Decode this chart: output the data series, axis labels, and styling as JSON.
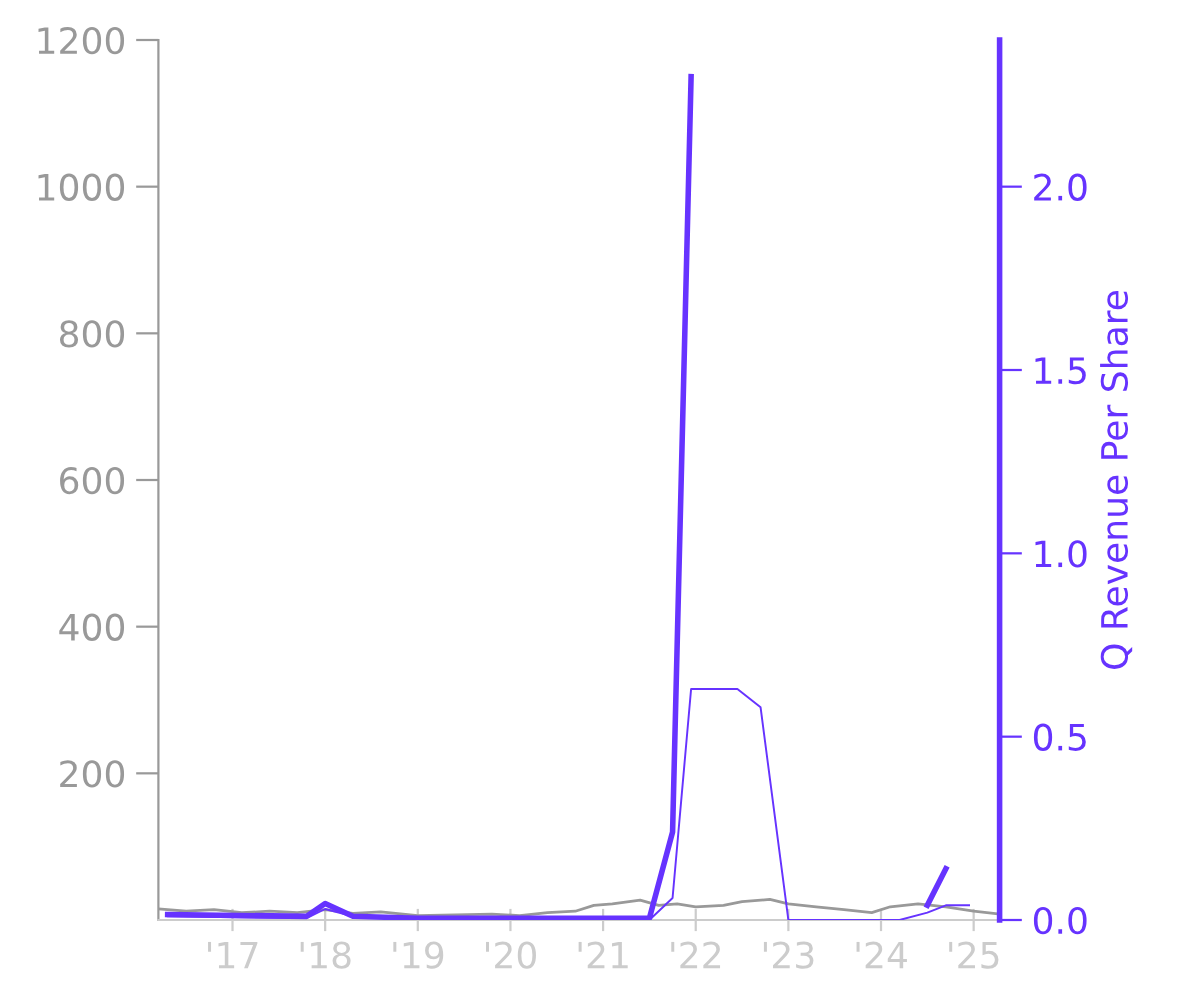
{
  "chart_data": {
    "type": "line",
    "y2label": "Q Revenue Per Share",
    "xlim": [
      2016.2,
      2025.28
    ],
    "xticks": [
      {
        "value": 2017,
        "label": "'17"
      },
      {
        "value": 2018,
        "label": "'18"
      },
      {
        "value": 2019,
        "label": "'19"
      },
      {
        "value": 2020,
        "label": "'20"
      },
      {
        "value": 2021,
        "label": "'21"
      },
      {
        "value": 2022,
        "label": "'22"
      },
      {
        "value": 2023,
        "label": "'23"
      },
      {
        "value": 2024,
        "label": "'24"
      },
      {
        "value": 2025,
        "label": "'25"
      }
    ],
    "ylim": [
      0,
      1200
    ],
    "yticks": [
      200,
      400,
      600,
      800,
      1000,
      1200
    ],
    "y2lim": [
      0,
      2.4
    ],
    "y2ticks": [
      {
        "value": 0,
        "label": "0.0"
      },
      {
        "value": 0.5,
        "label": "0.5"
      },
      {
        "value": 1.0,
        "label": "1.0"
      },
      {
        "value": 1.5,
        "label": "1.5"
      },
      {
        "value": 2.0,
        "label": "2.0"
      }
    ],
    "grid": false,
    "legend": false,
    "marker": "none",
    "line_style": "solid",
    "series": [
      {
        "color": "#999999",
        "x": [
          2016.2,
          2016.5,
          2016.8,
          2017.1,
          2017.4,
          2017.7,
          2018.0,
          2018.3,
          2018.6,
          2019.0,
          2019.4,
          2019.8,
          2020.1,
          2020.4,
          2020.7,
          2020.9,
          2021.1,
          2021.4,
          2021.6,
          2021.8,
          2022.0,
          2022.3,
          2022.5,
          2022.8,
          2023.0,
          2023.3,
          2023.6,
          2023.9,
          2024.1,
          2024.4,
          2024.7,
          2025.0,
          2025.28
        ],
        "values": [
          15,
          12,
          14,
          10,
          12,
          10,
          14,
          9,
          11,
          6,
          7,
          8,
          6,
          10,
          12,
          20,
          22,
          27,
          20,
          22,
          18,
          20,
          25,
          28,
          22,
          18,
          14,
          10,
          18,
          22,
          18,
          12,
          8
        ]
      },
      {
        "color": "#6633ff",
        "axis": "y2",
        "x": [
          2016.3,
          2017.8,
          2018.0,
          2018.3,
          2019.0,
          2020.0,
          2021.0,
          2021.5,
          2021.75,
          2021.95,
          2022.2,
          2024.5,
          2024.7
        ],
        "values": [
          0.015,
          0.01,
          0.045,
          0.01,
          0.005,
          0.005,
          0.005,
          0.005,
          0.24,
          2.3,
          null,
          0.04,
          0.14
        ]
      },
      {
        "color": "#6633ff",
        "axis": "y2",
        "x": [
          2016.3,
          2017.8,
          2018.0,
          2018.3,
          2019.0,
          2021.5,
          2021.75,
          2021.95,
          2022.45,
          2022.7,
          2023.0,
          2024.2,
          2024.5,
          2024.7,
          2024.95
        ],
        "values": [
          0.01,
          0.005,
          0.03,
          0.01,
          0.005,
          0.0,
          0.06,
          0.63,
          0.63,
          0.58,
          0.0,
          0.0,
          0.02,
          0.04,
          0.04
        ]
      }
    ]
  }
}
